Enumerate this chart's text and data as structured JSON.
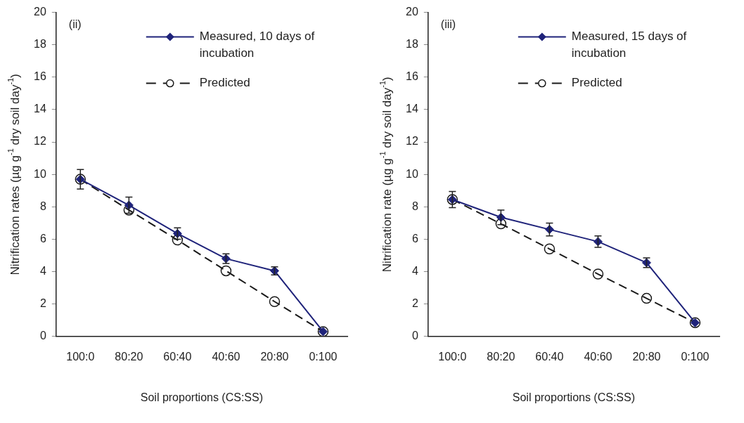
{
  "chart_data": [
    {
      "type": "line",
      "annotations": [
        "(ii)"
      ],
      "xlabel": "Soil proportions (CS:SS)",
      "ylabel": "Nitrification rates (µg g$^{-1}$ dry soil day$^{-1}$)",
      "categories": [
        "100:0",
        "80:20",
        "60:40",
        "40:60",
        "20:80",
        "0:100"
      ],
      "ylim": [
        0,
        20
      ],
      "yticks": [
        0,
        2,
        4,
        6,
        8,
        10,
        12,
        14,
        16,
        18,
        20
      ],
      "grid": false,
      "legend": "top right",
      "series": [
        {
          "name": "Measured, 10 days of incubation",
          "color": "#1f237a",
          "marker": "diamond",
          "line_style": "solid",
          "values": [
            9.7,
            8.1,
            6.35,
            4.8,
            4.05,
            0.3
          ],
          "errors": [
            0.6,
            0.5,
            0.35,
            0.3,
            0.25,
            null
          ]
        },
        {
          "name": "Predicted",
          "color": "#1a1a1a",
          "marker": "circle",
          "line_style": "dashed",
          "values": [
            9.7,
            7.8,
            5.95,
            4.05,
            2.15,
            0.3
          ]
        }
      ]
    },
    {
      "type": "line",
      "annotations": [
        "(iii)"
      ],
      "xlabel": "Soil proportions (CS:SS)",
      "ylabel": "Nitrification rate (µg g$^{-1}$ dry soil day$^{-1}$)",
      "categories": [
        "100:0",
        "80:20",
        "60:40",
        "40:60",
        "20:80",
        "0:100"
      ],
      "ylim": [
        0,
        20
      ],
      "yticks": [
        0,
        2,
        4,
        6,
        8,
        10,
        12,
        14,
        16,
        18,
        20
      ],
      "grid": false,
      "legend": "top right",
      "series": [
        {
          "name": "Measured, 15 days of incubation",
          "color": "#1f237a",
          "marker": "diamond",
          "line_style": "solid",
          "values": [
            8.45,
            7.35,
            6.6,
            5.85,
            4.55,
            0.85
          ],
          "errors": [
            0.5,
            0.45,
            0.4,
            0.35,
            0.3,
            null
          ]
        },
        {
          "name": "Predicted",
          "color": "#1a1a1a",
          "marker": "circle",
          "line_style": "dashed",
          "values": [
            8.45,
            6.95,
            5.4,
            3.85,
            2.35,
            0.85
          ]
        }
      ]
    }
  ]
}
